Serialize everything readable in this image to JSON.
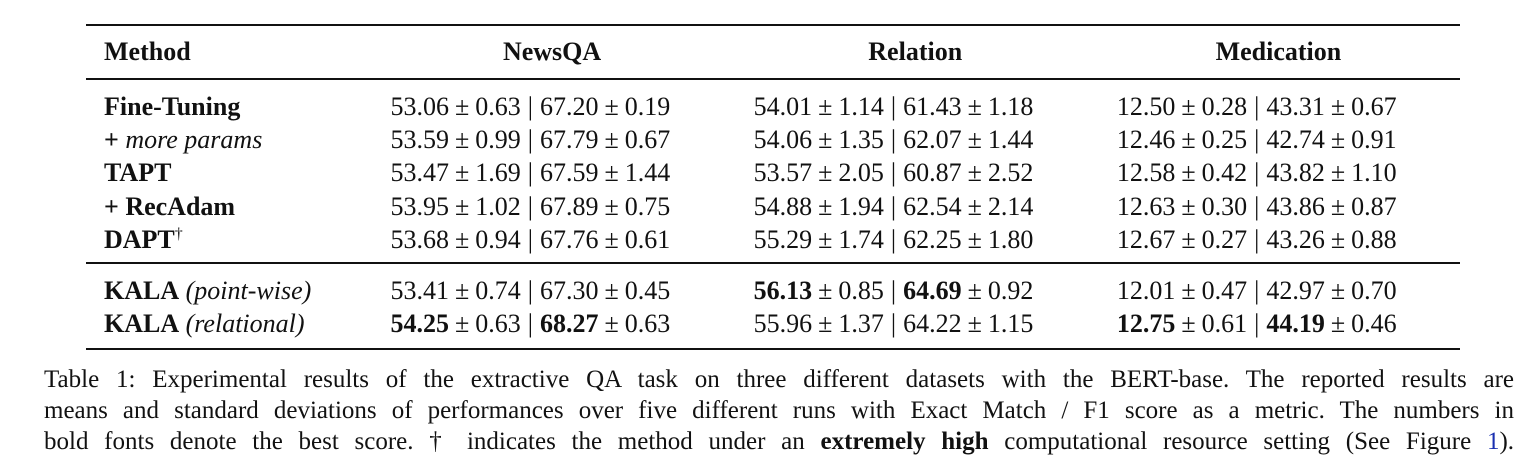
{
  "table": {
    "headers": {
      "method": "Method",
      "col1": "NewsQA",
      "col2": "Relation",
      "col3": "Medication"
    },
    "pm_symbol": "±",
    "separator": "|",
    "groups": [
      {
        "rows": [
          {
            "method": {
              "prefix": "",
              "name": "Fine-Tuning",
              "suffix": "",
              "sup": ""
            },
            "cells": [
              {
                "em": "53.06",
                "em_sd": "0.63",
                "f1": "67.20",
                "f1_sd": "0.19",
                "em_best": false,
                "f1_best": false
              },
              {
                "em": "54.01",
                "em_sd": "1.14",
                "f1": "61.43",
                "f1_sd": "1.18",
                "em_best": false,
                "f1_best": false
              },
              {
                "em": "12.50",
                "em_sd": "0.28",
                "f1": "43.31",
                "f1_sd": "0.67",
                "em_best": false,
                "f1_best": false
              }
            ]
          },
          {
            "method": {
              "prefix": "+ ",
              "name": "",
              "suffix": "more params",
              "sup": ""
            },
            "cells": [
              {
                "em": "53.59",
                "em_sd": "0.99",
                "f1": "67.79",
                "f1_sd": "0.67",
                "em_best": false,
                "f1_best": false
              },
              {
                "em": "54.06",
                "em_sd": "1.35",
                "f1": "62.07",
                "f1_sd": "1.44",
                "em_best": false,
                "f1_best": false
              },
              {
                "em": "12.46",
                "em_sd": "0.25",
                "f1": "42.74",
                "f1_sd": "0.91",
                "em_best": false,
                "f1_best": false
              }
            ]
          },
          {
            "method": {
              "prefix": "",
              "name": "TAPT",
              "suffix": "",
              "sup": ""
            },
            "cells": [
              {
                "em": "53.47",
                "em_sd": "1.69",
                "f1": "67.59",
                "f1_sd": "1.44",
                "em_best": false,
                "f1_best": false
              },
              {
                "em": "53.57",
                "em_sd": "2.05",
                "f1": "60.87",
                "f1_sd": "2.52",
                "em_best": false,
                "f1_best": false
              },
              {
                "em": "12.58",
                "em_sd": "0.42",
                "f1": "43.82",
                "f1_sd": "1.10",
                "em_best": false,
                "f1_best": false
              }
            ]
          },
          {
            "method": {
              "prefix": "+ ",
              "name": "RecAdam",
              "suffix": "",
              "sup": ""
            },
            "cells": [
              {
                "em": "53.95",
                "em_sd": "1.02",
                "f1": "67.89",
                "f1_sd": "0.75",
                "em_best": false,
                "f1_best": false
              },
              {
                "em": "54.88",
                "em_sd": "1.94",
                "f1": "62.54",
                "f1_sd": "2.14",
                "em_best": false,
                "f1_best": false
              },
              {
                "em": "12.63",
                "em_sd": "0.30",
                "f1": "43.86",
                "f1_sd": "0.87",
                "em_best": false,
                "f1_best": false
              }
            ]
          },
          {
            "method": {
              "prefix": "",
              "name": "DAPT",
              "suffix": "",
              "sup": "†"
            },
            "cells": [
              {
                "em": "53.68",
                "em_sd": "0.94",
                "f1": "67.76",
                "f1_sd": "0.61",
                "em_best": false,
                "f1_best": false
              },
              {
                "em": "55.29",
                "em_sd": "1.74",
                "f1": "62.25",
                "f1_sd": "1.80",
                "em_best": false,
                "f1_best": false
              },
              {
                "em": "12.67",
                "em_sd": "0.27",
                "f1": "43.26",
                "f1_sd": "0.88",
                "em_best": false,
                "f1_best": false
              }
            ]
          }
        ]
      },
      {
        "rows": [
          {
            "method": {
              "prefix": "",
              "name": "KALA",
              "suffix": "(point-wise)",
              "sup": ""
            },
            "cells": [
              {
                "em": "53.41",
                "em_sd": "0.74",
                "f1": "67.30",
                "f1_sd": "0.45",
                "em_best": false,
                "f1_best": false
              },
              {
                "em": "56.13",
                "em_sd": "0.85",
                "f1": "64.69",
                "f1_sd": "0.92",
                "em_best": true,
                "f1_best": true
              },
              {
                "em": "12.01",
                "em_sd": "0.47",
                "f1": "42.97",
                "f1_sd": "0.70",
                "em_best": false,
                "f1_best": false
              }
            ]
          },
          {
            "method": {
              "prefix": "",
              "name": "KALA",
              "suffix": "(relational)",
              "sup": ""
            },
            "cells": [
              {
                "em": "54.25",
                "em_sd": "0.63",
                "f1": "68.27",
                "f1_sd": "0.63",
                "em_best": true,
                "f1_best": true
              },
              {
                "em": "55.96",
                "em_sd": "1.37",
                "f1": "64.22",
                "f1_sd": "1.15",
                "em_best": false,
                "f1_best": false
              },
              {
                "em": "12.75",
                "em_sd": "0.61",
                "f1": "44.19",
                "f1_sd": "0.46",
                "em_best": true,
                "f1_best": true
              }
            ]
          }
        ]
      }
    ]
  },
  "caption": {
    "label": "Table 1:",
    "line1": "Experimental results of the extractive QA task on three different datasets with the BERT-base. The reported results are",
    "line2": "means and standard deviations of performances over five different runs with Exact Match / F1 score as a metric. The numbers in",
    "line3_pre": "bold fonts denote the best score. † indicates the method under an",
    "line3_bold": "extremely high",
    "line3_mid": "computational resource setting (See Figure",
    "line3_ref": "1",
    "line3_end": ")."
  }
}
